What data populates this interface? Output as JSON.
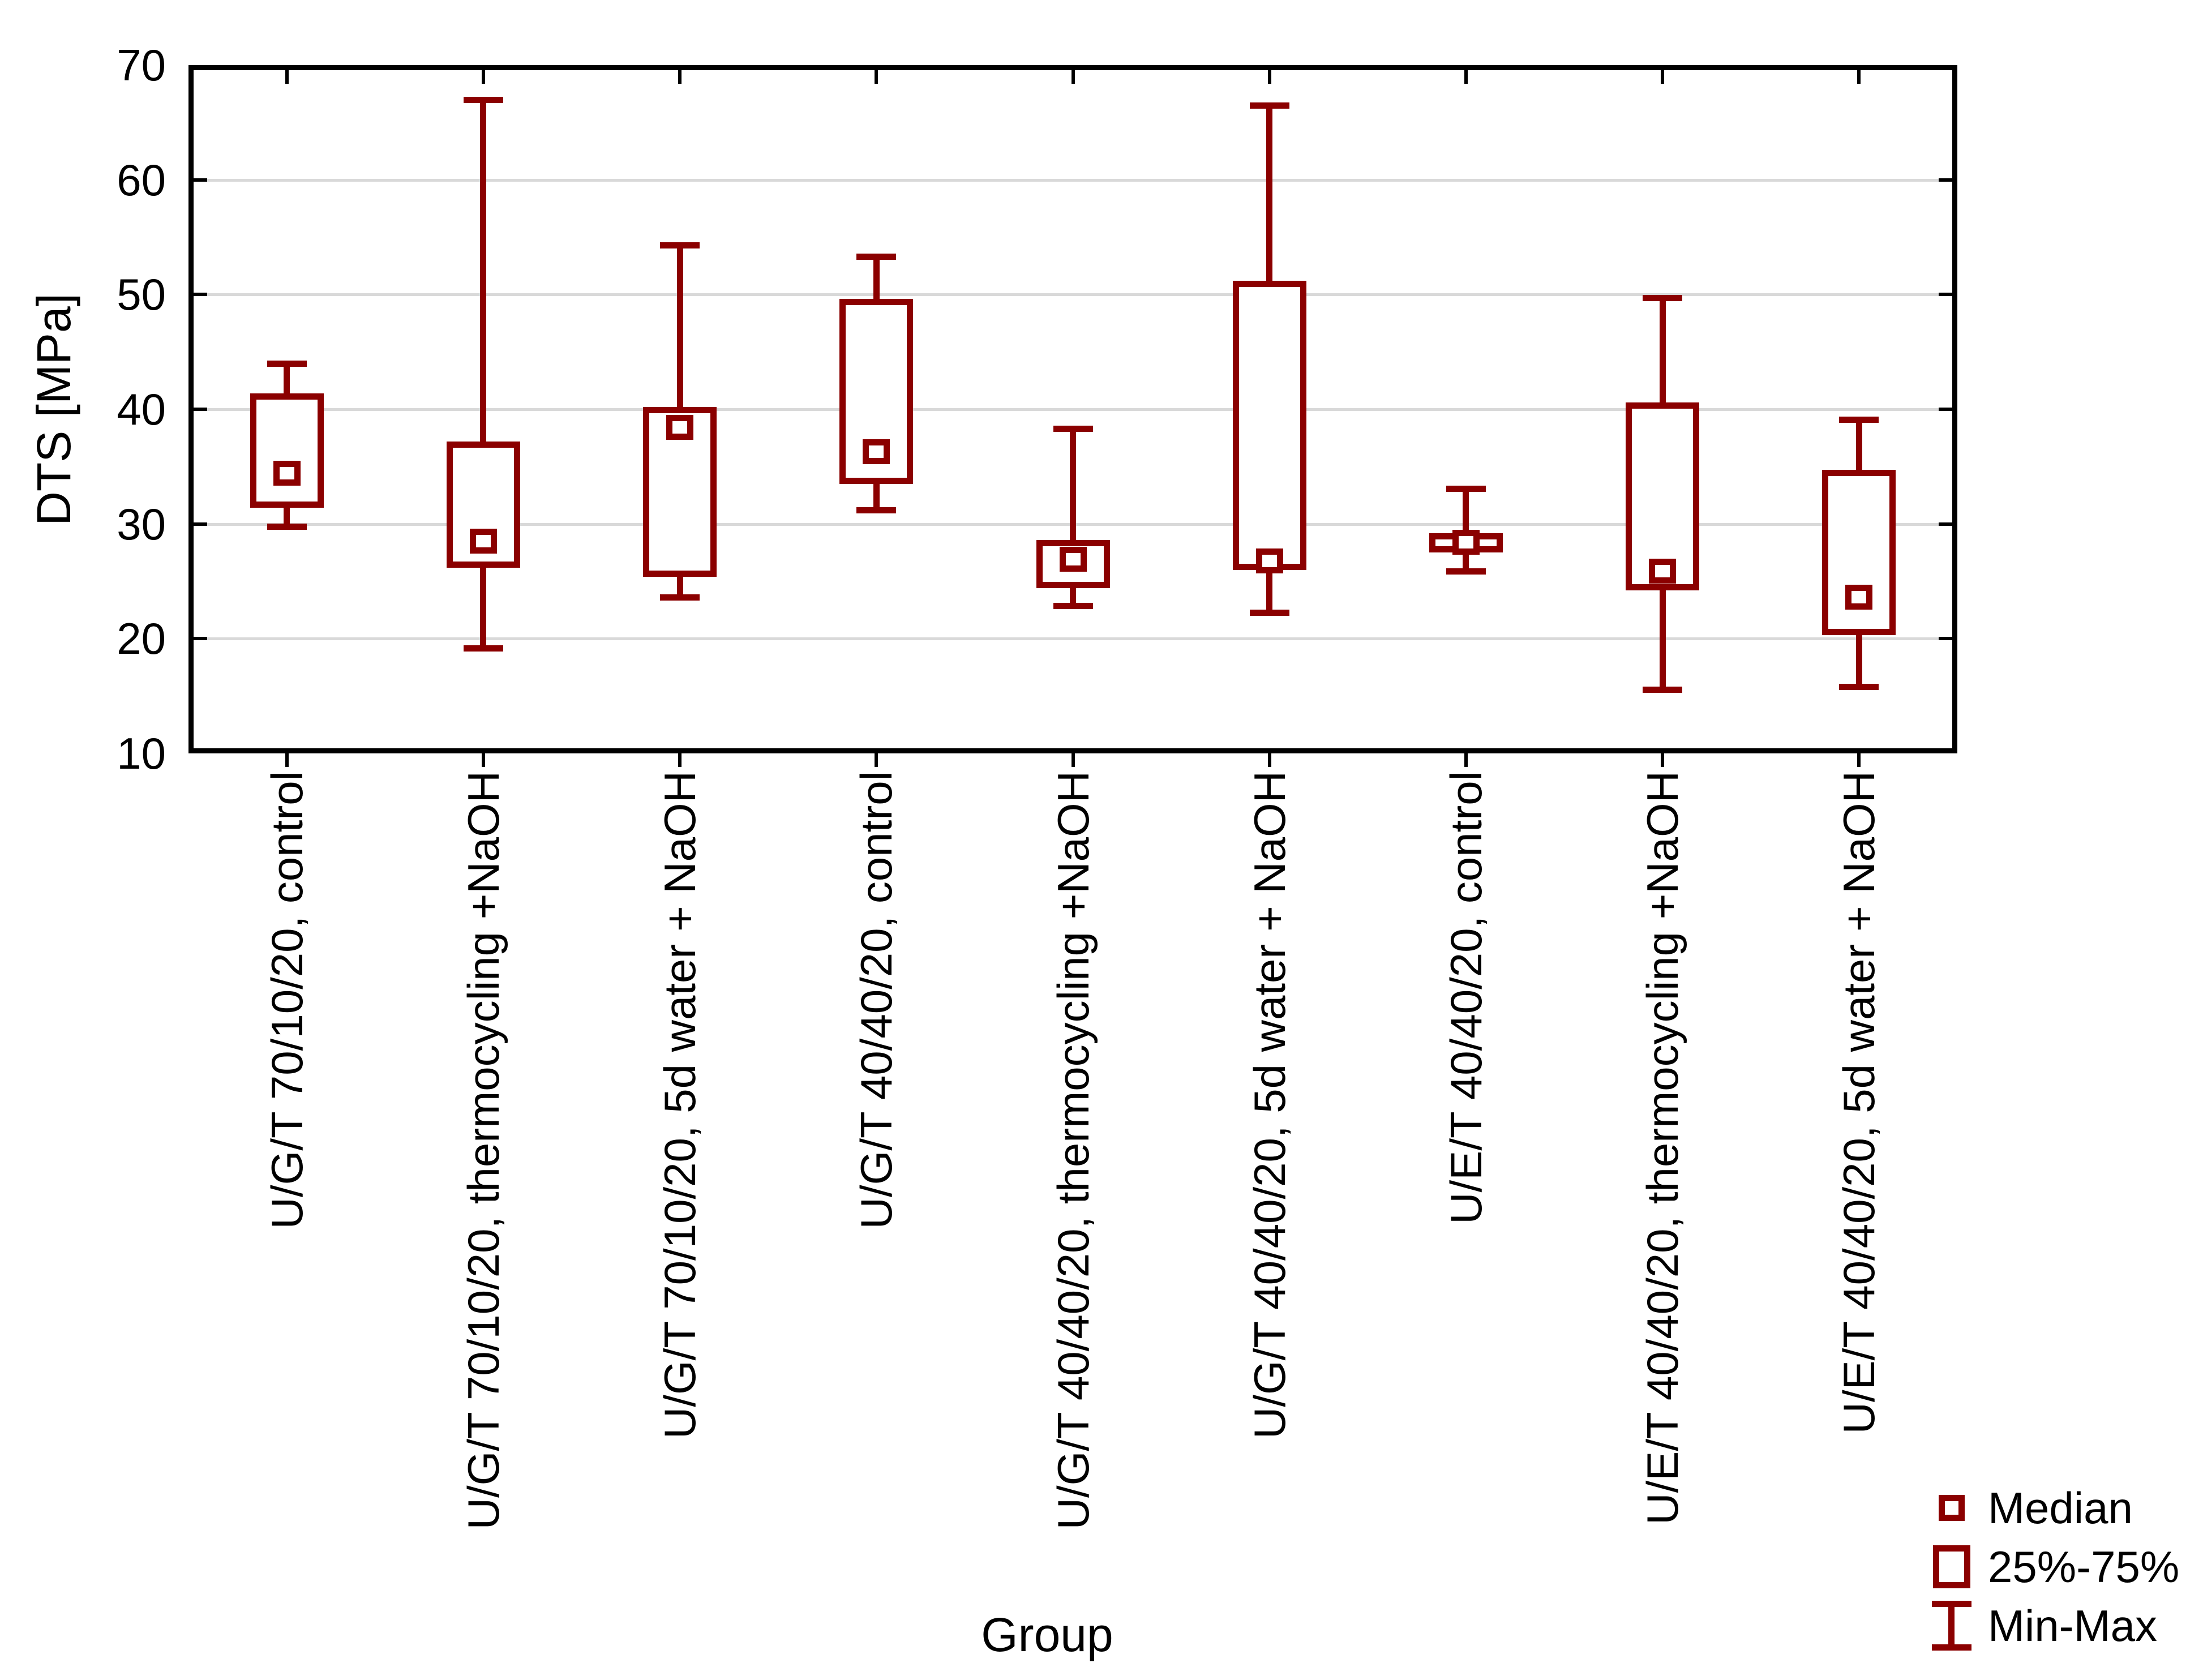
{
  "chart_data": {
    "type": "box",
    "title": "",
    "xlabel": "Group",
    "ylabel": "DTS [MPa]",
    "ylim": [
      10,
      70
    ],
    "ytick_step": 10,
    "grid": "horizontal",
    "legend_position": "bottom-right",
    "box_color": "#8B0000",
    "grid_color": "#d9d9d9",
    "frame_color": "#000000",
    "legend": [
      {
        "icon": "median-square-icon",
        "label": "Median"
      },
      {
        "icon": "iqr-box-icon",
        "label": "25%-75%"
      },
      {
        "icon": "minmax-whisker-icon",
        "label": "Min-Max"
      }
    ],
    "groups": [
      {
        "label": "U/G/T 70/10/20, control",
        "min": 29.8,
        "q1": 31.4,
        "median": 34.4,
        "q3": 41.4,
        "max": 44.0
      },
      {
        "label": "U/G/T 70/10/20, thermocycling +NaOH",
        "min": 19.2,
        "q1": 26.2,
        "median": 28.5,
        "q3": 37.2,
        "max": 67.0
      },
      {
        "label": "U/G/T 70/10/20, 5d water + NaOH",
        "min": 23.6,
        "q1": 25.4,
        "median": 38.4,
        "q3": 40.2,
        "max": 54.3
      },
      {
        "label": "U/G/T 40/40/20, control",
        "min": 31.2,
        "q1": 33.5,
        "median": 36.3,
        "q3": 49.6,
        "max": 53.3
      },
      {
        "label": "U/G/T 40/40/20, thermocycling +NaOH",
        "min": 22.9,
        "q1": 24.4,
        "median": 26.9,
        "q3": 28.6,
        "max": 38.3
      },
      {
        "label": "U/G/T 40/40/20, 5d water + NaOH",
        "min": 22.3,
        "q1": 26.0,
        "median": 26.8,
        "q3": 51.2,
        "max": 66.5
      },
      {
        "label": "U/E/T 40/40/20, control",
        "min": 25.9,
        "q1": 27.5,
        "median": 28.4,
        "q3": 29.2,
        "max": 33.1
      },
      {
        "label": "U/E/T 40/40/20, thermocycling +NaOH",
        "min": 15.6,
        "q1": 24.2,
        "median": 25.9,
        "q3": 40.6,
        "max": 49.7
      },
      {
        "label": "U/E/T 40/40/20, 5d water + NaOH",
        "min": 15.8,
        "q1": 20.3,
        "median": 23.6,
        "q3": 34.7,
        "max": 39.1
      }
    ]
  }
}
